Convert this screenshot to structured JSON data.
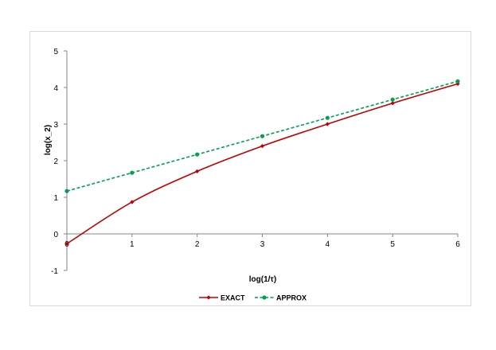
{
  "chart_data": {
    "type": "line",
    "xlabel": "log(1/τ)",
    "ylabel": "log(x_2)",
    "xlim": [
      0,
      6
    ],
    "ylim": [
      -1,
      5
    ],
    "xticks": [
      "0",
      "1",
      "2",
      "3",
      "4",
      "5",
      "6"
    ],
    "yticks": [
      "-1",
      "0",
      "1",
      "2",
      "3",
      "4",
      "5"
    ],
    "grid": false,
    "legend_position": "bottom",
    "series": [
      {
        "name": "EXACT",
        "color": "#c00000",
        "style": "solid-smooth",
        "marker": "diamond",
        "x": [
          0,
          1,
          2,
          3,
          4,
          5,
          6
        ],
        "y": [
          -0.27,
          0.87,
          1.71,
          2.4,
          3.0,
          3.57,
          4.1
        ]
      },
      {
        "name": "APPROX",
        "color": "#00a050",
        "style": "dashed",
        "marker": "circle",
        "x": [
          0,
          1,
          2,
          3,
          4,
          5,
          6
        ],
        "y": [
          1.17,
          1.67,
          2.17,
          2.67,
          3.17,
          3.67,
          4.17
        ]
      }
    ]
  }
}
